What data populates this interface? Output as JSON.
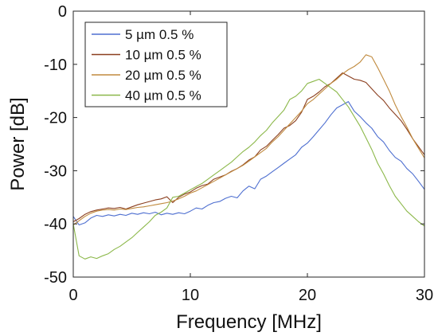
{
  "chart_data": {
    "type": "line",
    "xlabel": "Frequency [MHz]",
    "ylabel": "Power [dB]",
    "xlim": [
      0,
      30
    ],
    "ylim": [
      -50,
      0
    ],
    "xticks": [
      0,
      10,
      20,
      30
    ],
    "yticks": [
      0,
      -10,
      -20,
      -30,
      -40,
      -50
    ],
    "grid": false,
    "legend_position": "top-left",
    "series": [
      {
        "name": "5 µm 0.5 %",
        "color": "#4e6fd0",
        "x": [
          0,
          0.5,
          1,
          1.5,
          2,
          2.5,
          3,
          3.5,
          4,
          4.5,
          5,
          5.5,
          6,
          6.5,
          7,
          7.5,
          8,
          8.5,
          9,
          9.5,
          10,
          10.5,
          11,
          11.5,
          12,
          12.5,
          13,
          13.5,
          14,
          14.5,
          15,
          15.5,
          16,
          16.5,
          17,
          17.5,
          18,
          18.5,
          19,
          19.5,
          20,
          20.5,
          21,
          21.5,
          22,
          22.5,
          23,
          23.5,
          24,
          24.5,
          25,
          25.5,
          26,
          26.5,
          27,
          27.5,
          28,
          28.5,
          29,
          29.5,
          30
        ],
        "y": [
          -38.6,
          -40.2,
          -39.8,
          -38.9,
          -38.4,
          -38.6,
          -38.3,
          -38.5,
          -38.2,
          -38.4,
          -38.0,
          -38.2,
          -37.9,
          -38.1,
          -37.8,
          -38.3,
          -38.0,
          -38.2,
          -37.9,
          -38.1,
          -37.6,
          -37.0,
          -37.2,
          -36.5,
          -36.0,
          -35.8,
          -35.2,
          -34.8,
          -35.1,
          -33.8,
          -32.9,
          -33.4,
          -31.6,
          -31.0,
          -30.2,
          -29.4,
          -28.6,
          -27.8,
          -27.0,
          -25.6,
          -24.8,
          -23.6,
          -22.3,
          -21.0,
          -19.5,
          -18.2,
          -17.6,
          -17.0,
          -18.8,
          -19.8,
          -21.0,
          -22.0,
          -23.6,
          -24.6,
          -26.2,
          -27.5,
          -28.2,
          -29.6,
          -30.6,
          -32.0,
          -33.5
        ]
      },
      {
        "name": "10 µm 0.5 %",
        "color": "#8b3f1f",
        "x": [
          0,
          0.5,
          1,
          1.5,
          2,
          2.5,
          3,
          3.5,
          4,
          4.5,
          5,
          5.5,
          6,
          6.5,
          7,
          7.5,
          8,
          8.5,
          9,
          9.5,
          10,
          10.5,
          11,
          11.5,
          12,
          12.5,
          13,
          13.5,
          14,
          14.5,
          15,
          15.5,
          16,
          16.5,
          17,
          17.5,
          18,
          18.5,
          19,
          19.5,
          20,
          20.5,
          21,
          21.5,
          22,
          22.5,
          23,
          23.5,
          24,
          24.5,
          25,
          25.5,
          26,
          26.5,
          27,
          27.5,
          28,
          28.5,
          29,
          29.5,
          30
        ],
        "y": [
          -39.6,
          -39.0,
          -38.2,
          -37.7,
          -37.4,
          -37.2,
          -37.0,
          -37.1,
          -36.9,
          -37.2,
          -36.8,
          -36.4,
          -36.1,
          -35.8,
          -35.5,
          -35.3,
          -34.9,
          -36.0,
          -35.0,
          -34.4,
          -34.0,
          -33.3,
          -32.8,
          -32.5,
          -31.6,
          -31.2,
          -30.8,
          -30.1,
          -29.6,
          -28.9,
          -28.0,
          -27.4,
          -26.1,
          -25.4,
          -24.3,
          -23.2,
          -22.0,
          -21.5,
          -20.6,
          -19.0,
          -16.6,
          -16.0,
          -15.2,
          -14.2,
          -13.6,
          -12.6,
          -11.6,
          -12.2,
          -12.8,
          -13.0,
          -13.4,
          -14.6,
          -15.8,
          -16.8,
          -18.2,
          -19.4,
          -20.6,
          -22.2,
          -24.0,
          -25.5,
          -27.0
        ]
      },
      {
        "name": "20 µm 0.5 %",
        "color": "#c08a3e",
        "x": [
          0,
          0.5,
          1,
          1.5,
          2,
          2.5,
          3,
          3.5,
          4,
          4.5,
          5,
          5.5,
          6,
          6.5,
          7,
          7.5,
          8,
          8.5,
          9,
          9.5,
          10,
          10.5,
          11,
          11.5,
          12,
          12.5,
          13,
          13.5,
          14,
          14.5,
          15,
          15.5,
          16,
          16.5,
          17,
          17.5,
          18,
          18.5,
          19,
          19.5,
          20,
          20.5,
          21,
          21.5,
          22,
          22.5,
          23,
          23.5,
          24,
          24.5,
          25,
          25.5,
          26,
          26.5,
          27,
          27.5,
          28,
          28.5,
          29,
          29.5,
          30
        ],
        "y": [
          -40.2,
          -39.4,
          -38.6,
          -38.0,
          -37.6,
          -37.4,
          -37.3,
          -37.4,
          -37.2,
          -37.3,
          -37.1,
          -36.9,
          -36.8,
          -36.6,
          -36.4,
          -36.2,
          -36.0,
          -35.7,
          -35.3,
          -34.8,
          -34.2,
          -33.8,
          -33.2,
          -32.6,
          -32.0,
          -31.4,
          -30.8,
          -30.2,
          -29.6,
          -29.0,
          -28.2,
          -27.4,
          -26.6,
          -25.8,
          -24.6,
          -23.6,
          -22.4,
          -21.2,
          -20.0,
          -18.8,
          -17.4,
          -16.6,
          -15.6,
          -14.6,
          -13.6,
          -12.8,
          -11.8,
          -11.0,
          -10.4,
          -9.6,
          -8.2,
          -8.6,
          -10.6,
          -12.8,
          -15.0,
          -17.6,
          -19.8,
          -21.8,
          -24.0,
          -25.8,
          -27.6
        ]
      },
      {
        "name": "40 µm 0.5 %",
        "color": "#8cb84a",
        "x": [
          0,
          0.5,
          1,
          1.5,
          2,
          2.5,
          3,
          3.5,
          4,
          4.5,
          5,
          5.5,
          6,
          6.5,
          7,
          7.5,
          8,
          8.5,
          9,
          9.5,
          10,
          10.5,
          11,
          11.5,
          12,
          12.5,
          13,
          13.5,
          14,
          14.5,
          15,
          15.5,
          16,
          16.5,
          17,
          17.5,
          18,
          18.5,
          19,
          19.5,
          20,
          20.5,
          21,
          21.5,
          22,
          22.5,
          23,
          23.5,
          24,
          24.5,
          25,
          25.5,
          26,
          26.5,
          27,
          27.5,
          28,
          28.5,
          29,
          29.5,
          30
        ],
        "y": [
          -40.0,
          -46.0,
          -46.6,
          -46.2,
          -46.5,
          -46.0,
          -45.6,
          -44.8,
          -44.2,
          -43.4,
          -42.6,
          -41.6,
          -40.6,
          -39.6,
          -38.4,
          -37.8,
          -37.0,
          -35.0,
          -34.8,
          -34.2,
          -33.6,
          -33.0,
          -32.4,
          -31.6,
          -30.8,
          -30.0,
          -29.2,
          -28.4,
          -27.4,
          -26.4,
          -25.6,
          -24.6,
          -23.4,
          -22.4,
          -21.0,
          -19.8,
          -18.6,
          -16.6,
          -16.0,
          -15.0,
          -13.6,
          -13.2,
          -12.8,
          -13.6,
          -14.4,
          -15.2,
          -16.6,
          -18.0,
          -19.8,
          -21.6,
          -23.8,
          -26.0,
          -28.6,
          -30.6,
          -32.8,
          -34.8,
          -36.2,
          -37.6,
          -38.6,
          -39.6,
          -40.4
        ]
      }
    ]
  }
}
